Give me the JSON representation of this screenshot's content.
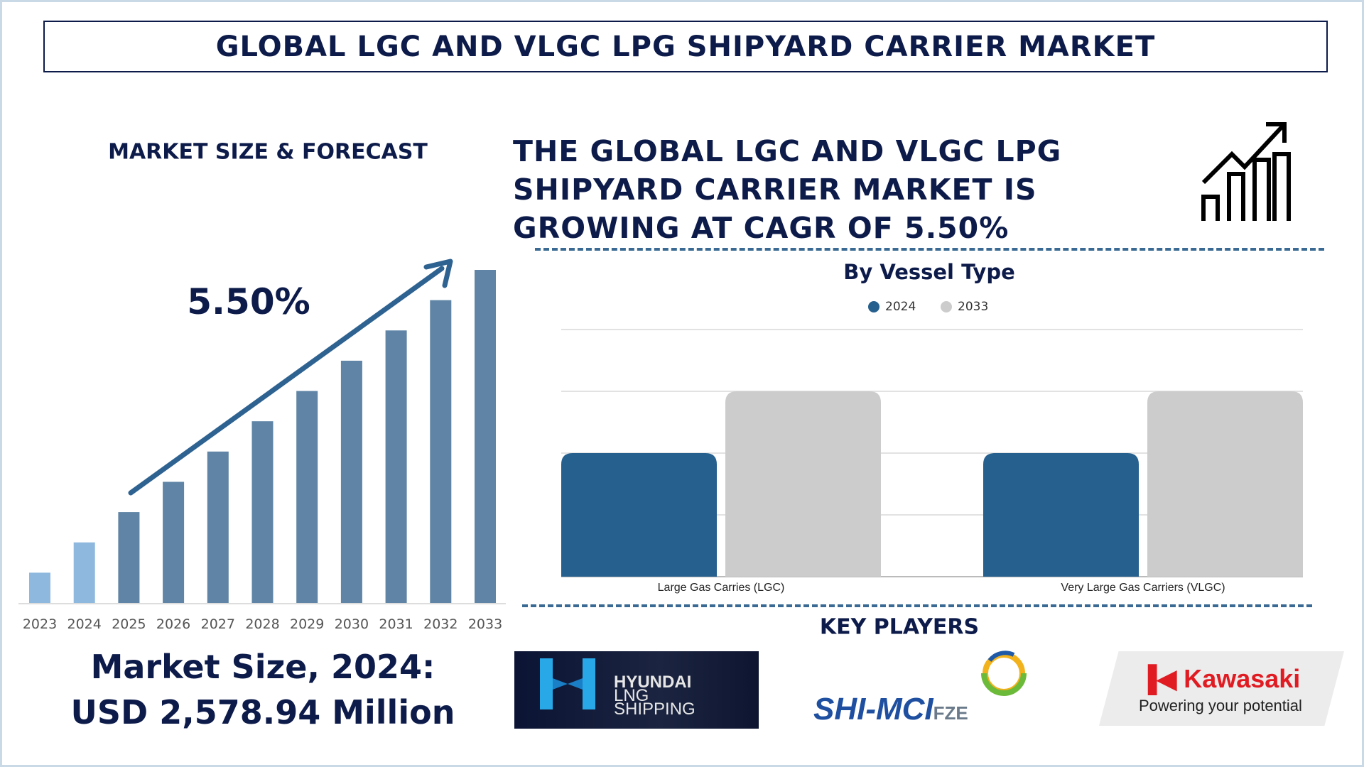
{
  "title": "GLOBAL LGC AND VLGC LPG SHIPYARD CARRIER MARKET",
  "left": {
    "section_title": "MARKET SIZE & FORECAST",
    "cagr_label": "5.50%",
    "market_size_line1": "Market Size, 2024:",
    "market_size_line2": "USD 2,578.94 Million"
  },
  "headline": [
    "THE GLOBAL LGC AND VLGC LPG",
    "SHIPYARD CARRIER MARKET IS",
    "GROWING AT CAGR OF 5.50%"
  ],
  "icons": {
    "growth": "growth-chart-icon"
  },
  "key_players": {
    "title": "KEY PLAYERS",
    "logos": [
      {
        "name": "HYUNDAI LNG SHIPPING",
        "lines": [
          "HYUNDAI",
          "LNG",
          "SHIPPING"
        ]
      },
      {
        "name": "SHI-MCI FZE",
        "main": "SHI-MCI",
        "suffix": "FZE"
      },
      {
        "name": "Kawasaki",
        "main": "Kawasaki",
        "tagline": "Powering your potential"
      }
    ]
  },
  "colors": {
    "navy": "#0d1b4a",
    "bar_light": "#8fb8de",
    "bar_main": "#5f84a5",
    "series_2024": "#26608e",
    "series_2033": "#cccccc",
    "arrow": "#2e6290"
  },
  "chart_data": [
    {
      "type": "bar",
      "title": "MARKET SIZE & FORECAST",
      "categories": [
        "2023",
        "2024",
        "2025",
        "2026",
        "2027",
        "2028",
        "2029",
        "2030",
        "2031",
        "2032",
        "2033"
      ],
      "values": [
        1,
        2,
        3,
        4,
        5,
        6,
        7,
        8,
        9,
        10,
        11
      ],
      "annotation": "5.50%",
      "grid": false
    },
    {
      "type": "bar",
      "title": "By Vessel Type",
      "categories": [
        "Large Gas Carries (LGC)",
        "Very Large Gas Carriers (VLGC)"
      ],
      "series": [
        {
          "name": "2024",
          "values": [
            2,
            2
          ]
        },
        {
          "name": "2033",
          "values": [
            3,
            3
          ]
        }
      ],
      "ylim": [
        0,
        4
      ],
      "grid": true,
      "legend": "top-center"
    }
  ]
}
